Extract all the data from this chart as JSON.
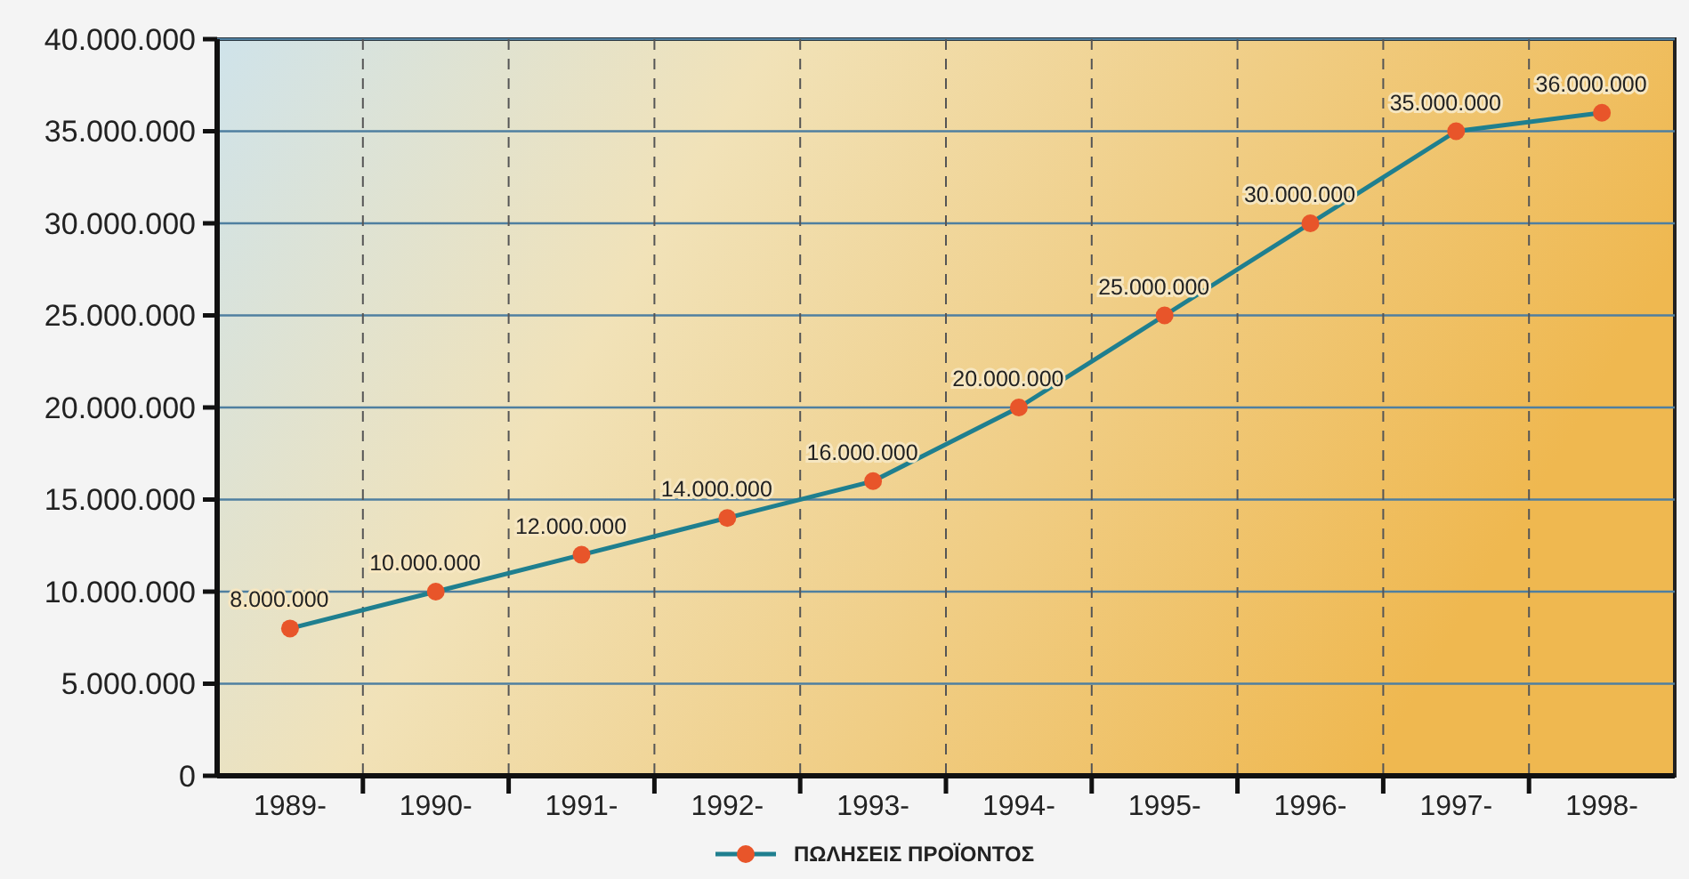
{
  "chart_data": {
    "type": "line",
    "categories": [
      "1989-",
      "1990-",
      "1991-",
      "1992-",
      "1993-",
      "1994-",
      "1995-",
      "1996-",
      "1997-",
      "1998-"
    ],
    "series": [
      {
        "name": "ΠΩΛΗΣΕΙΣ ΠΡΟΪΟΝΤΟΣ",
        "color": "#1f7f8f",
        "values": [
          8000000,
          10000000,
          12000000,
          14000000,
          16000000,
          20000000,
          25000000,
          30000000,
          35000000,
          36000000
        ],
        "value_labels": [
          "8.000.000",
          "10.000.000",
          "12.000.000",
          "14.000.000",
          "16.000.000",
          "20.000.000",
          "25.000.000",
          "30.000.000",
          "35.000.000",
          "36.000.000"
        ]
      }
    ],
    "ylim": [
      0,
      40000000
    ],
    "yticks": [
      {
        "value": 0,
        "label": "0"
      },
      {
        "value": 5000000,
        "label": "5.000.000"
      },
      {
        "value": 10000000,
        "label": "10.000.000"
      },
      {
        "value": 15000000,
        "label": "15.000.000"
      },
      {
        "value": 20000000,
        "label": "20.000.000"
      },
      {
        "value": 25000000,
        "label": "25.000.000"
      },
      {
        "value": 30000000,
        "label": "30.000.000"
      },
      {
        "value": 35000000,
        "label": "35.000.000"
      },
      {
        "value": 40000000,
        "label": "40.000.000"
      }
    ],
    "grid": true,
    "legend": "bottom",
    "marker": "circle",
    "line_style": "solid"
  }
}
